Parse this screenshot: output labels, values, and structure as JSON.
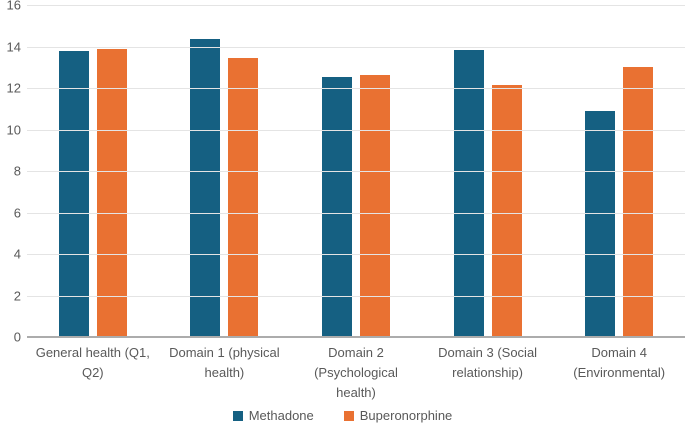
{
  "chart_data": {
    "type": "bar",
    "title": "",
    "xlabel": "",
    "ylabel": "",
    "categories": [
      "General health (Q1, Q2)",
      "Domain 1 (physical health)",
      "Domain 2 (Psychological health)",
      "Domain 3 (Social relationship)",
      "Domain 4 (Environmental)"
    ],
    "series": [
      {
        "name": "Methadone",
        "color": "#156082",
        "values": [
          13.8,
          14.35,
          12.55,
          13.85,
          10.9
        ]
      },
      {
        "name": "Buperonorphine",
        "color": "#E97132",
        "values": [
          13.9,
          13.45,
          12.65,
          12.15,
          13.0
        ]
      }
    ],
    "ylim": [
      0,
      16
    ],
    "yticks": [
      0,
      2,
      4,
      6,
      8,
      10,
      12,
      14,
      16
    ],
    "grid": true,
    "legend_position": "bottom"
  },
  "colors": {
    "background": "#FFFFFF",
    "gridline": "#E4E4E4",
    "axis_line": "#ACACAC",
    "tick_label": "#595959",
    "category_label": "#595959",
    "legend_text": "#595959",
    "series_methadone": "#156082",
    "series_buperonorphine": "#E97132"
  }
}
